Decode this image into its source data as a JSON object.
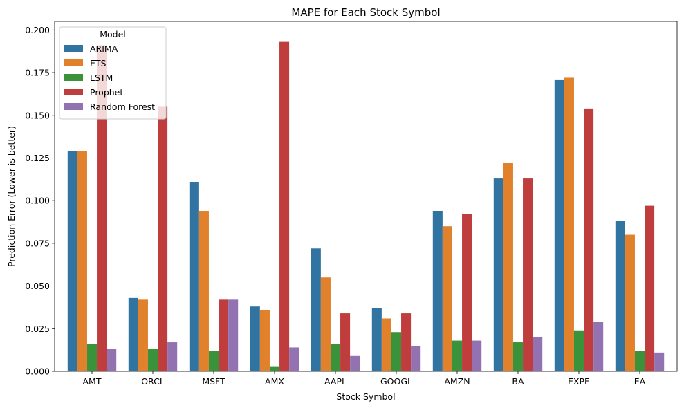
{
  "chart_data": {
    "type": "bar",
    "title": "MAPE for Each Stock Symbol",
    "xlabel": "Stock Symbol",
    "ylabel": "Prediction Error (Lower is better)",
    "ylim": [
      0,
      0.205
    ],
    "yticks": [
      "0.000",
      "0.025",
      "0.050",
      "0.075",
      "0.100",
      "0.125",
      "0.150",
      "0.175",
      "0.200"
    ],
    "categories": [
      "AMT",
      "ORCL",
      "MSFT",
      "AMX",
      "AAPL",
      "GOOGL",
      "AMZN",
      "BA",
      "EXPE",
      "EA"
    ],
    "legend": {
      "title": "Model",
      "placement": "top-left"
    },
    "grid": false,
    "series": [
      {
        "name": "ARIMA",
        "color": "#3274a1",
        "values": [
          0.129,
          0.043,
          0.111,
          0.038,
          0.072,
          0.037,
          0.094,
          0.113,
          0.171,
          0.088
        ]
      },
      {
        "name": "ETS",
        "color": "#e1812c",
        "values": [
          0.129,
          0.042,
          0.094,
          0.036,
          0.055,
          0.031,
          0.085,
          0.122,
          0.172,
          0.08
        ]
      },
      {
        "name": "LSTM",
        "color": "#3a923a",
        "values": [
          0.016,
          0.013,
          0.012,
          0.003,
          0.016,
          0.023,
          0.018,
          0.017,
          0.024,
          0.012
        ]
      },
      {
        "name": "Prophet",
        "color": "#c03d3e",
        "values": [
          0.191,
          0.155,
          0.042,
          0.193,
          0.034,
          0.034,
          0.092,
          0.113,
          0.154,
          0.097
        ]
      },
      {
        "name": "Random Forest",
        "color": "#9372b2",
        "values": [
          0.013,
          0.017,
          0.042,
          0.014,
          0.009,
          0.015,
          0.018,
          0.02,
          0.029,
          0.011
        ]
      }
    ]
  }
}
